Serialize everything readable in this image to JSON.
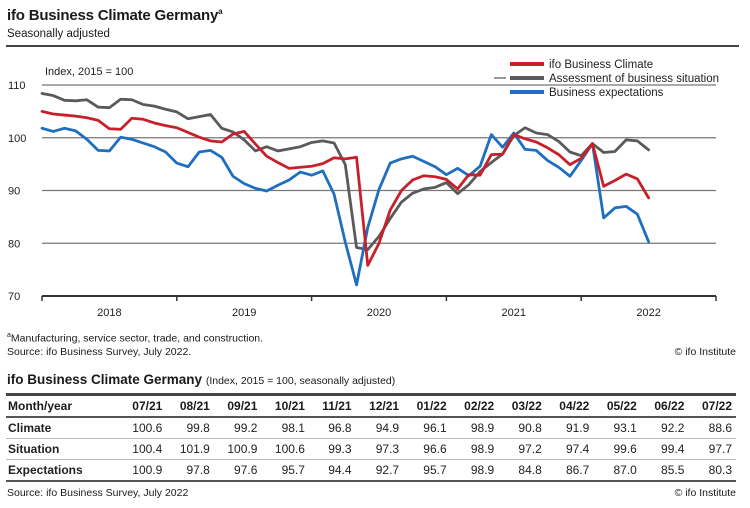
{
  "header": {
    "title": "ifo Business Climate Germany",
    "title_note": "a",
    "subtitle": "Seasonally adjusted"
  },
  "chart_data": {
    "type": "line",
    "title": "ifo Business Climate Germany",
    "subtitle": "Seasonally adjusted",
    "ylabel": "Index, 2015 = 100",
    "xlabel": "",
    "ylim": [
      70,
      110
    ],
    "yticks": [
      70,
      80,
      90,
      100,
      110
    ],
    "grid": true,
    "legend_position": "top-right",
    "x_start": "2018-01",
    "x_range_months": [
      0,
      60
    ],
    "year_labels": [
      "2018",
      "2019",
      "2020",
      "2021",
      "2022"
    ],
    "x": [
      "01/18",
      "02/18",
      "03/18",
      "04/18",
      "05/18",
      "06/18",
      "07/18",
      "08/18",
      "09/18",
      "10/18",
      "11/18",
      "12/18",
      "01/19",
      "02/19",
      "03/19",
      "04/19",
      "05/19",
      "06/19",
      "07/19",
      "08/19",
      "09/19",
      "10/19",
      "11/19",
      "12/19",
      "01/20",
      "02/20",
      "03/20",
      "04/20",
      "05/20",
      "06/20",
      "07/20",
      "08/20",
      "09/20",
      "10/20",
      "11/20",
      "12/20",
      "01/21",
      "02/21",
      "03/21",
      "04/21",
      "05/21",
      "06/21",
      "07/21",
      "08/21",
      "09/21",
      "10/21",
      "11/21",
      "12/21",
      "01/22",
      "02/22",
      "03/22",
      "04/22",
      "05/22",
      "06/22",
      "07/22"
    ],
    "series": [
      {
        "name": "ifo Business Climate",
        "color": "#c8202b",
        "values": [
          105.0,
          104.5,
          104.3,
          104.1,
          103.8,
          103.3,
          101.7,
          101.6,
          103.7,
          103.5,
          102.8,
          102.3,
          101.9,
          101.0,
          100.1,
          99.4,
          99.2,
          100.7,
          101.2,
          98.8,
          96.5,
          95.3,
          94.2,
          94.4,
          94.6,
          95.1,
          96.2,
          96.0,
          96.3,
          75.8,
          80.0,
          86.3,
          90.0,
          92.0,
          92.8,
          92.6,
          92.1,
          90.3,
          93.0,
          92.9,
          96.8,
          96.9,
          100.6,
          99.8,
          99.2,
          98.1,
          96.8,
          94.9,
          96.1,
          98.9,
          90.8,
          91.9,
          93.1,
          92.2,
          88.6
        ]
      },
      {
        "name": "Assessment of business situation",
        "color": "#5a5a5a",
        "values": [
          108.4,
          108.0,
          107.1,
          107.0,
          107.2,
          105.8,
          105.7,
          107.3,
          107.2,
          106.3,
          106.0,
          105.4,
          104.9,
          103.6,
          104.0,
          104.4,
          101.8,
          101.1,
          99.6,
          97.5,
          98.3,
          97.5,
          97.9,
          98.3,
          99.1,
          99.4,
          99.0,
          94.9,
          79.2,
          78.8,
          81.3,
          84.7,
          87.8,
          89.5,
          90.3,
          90.6,
          91.5,
          89.4,
          91.1,
          93.6,
          95.3,
          96.9,
          100.4,
          101.9,
          100.9,
          100.6,
          99.3,
          97.3,
          96.6,
          98.9,
          97.2,
          97.4,
          99.6,
          99.4,
          97.7
        ]
      },
      {
        "name": "Business expectations",
        "color": "#1f6fc0",
        "values": [
          101.8,
          101.2,
          101.8,
          101.3,
          99.7,
          97.6,
          97.5,
          100.1,
          99.7,
          99.0,
          98.3,
          97.3,
          95.2,
          94.5,
          97.3,
          97.6,
          96.3,
          92.7,
          91.3,
          90.4,
          89.9,
          91.0,
          92.0,
          93.5,
          92.9,
          93.7,
          89.3,
          80.2,
          72.1,
          83.0,
          90.2,
          95.2,
          96.0,
          96.5,
          95.5,
          94.5,
          93.0,
          94.2,
          92.8,
          94.6,
          100.6,
          98.2,
          100.9,
          97.8,
          97.6,
          95.7,
          94.4,
          92.7,
          95.7,
          98.9,
          84.8,
          86.7,
          87.0,
          85.5,
          80.3
        ]
      }
    ]
  },
  "footnotes": {
    "note_marker": "a",
    "note_text": "Manufacturing, service sector, trade, and construction.",
    "source_chart": "Source: ifo Business Survey, July 2022.",
    "copyright": "© ifo Institute"
  },
  "table": {
    "title": "ifo Business Climate Germany",
    "title_note": "(Index, 2015 = 100, seasonally adjusted)",
    "columns": [
      "Month/year",
      "07/21",
      "08/21",
      "09/21",
      "10/21",
      "11/21",
      "12/21",
      "01/22",
      "02/22",
      "03/22",
      "04/22",
      "05/22",
      "06/22",
      "07/22"
    ],
    "rows": [
      {
        "label": "Climate",
        "values": [
          "100.6",
          "99.8",
          "99.2",
          "98.1",
          "96.8",
          "94.9",
          "96.1",
          "98.9",
          "90.8",
          "91.9",
          "93.1",
          "92.2",
          "88.6"
        ]
      },
      {
        "label": "Situation",
        "values": [
          "100.4",
          "101.9",
          "100.9",
          "100.6",
          "99.3",
          "97.3",
          "96.6",
          "98.9",
          "97.2",
          "97.4",
          "99.6",
          "99.4",
          "97.7"
        ]
      },
      {
        "label": "Expectations",
        "values": [
          "100.9",
          "97.8",
          "97.6",
          "95.7",
          "94.4",
          "92.7",
          "95.7",
          "98.9",
          "84.8",
          "86.7",
          "87.0",
          "85.5",
          "80.3"
        ]
      }
    ],
    "source": "Source: ifo Business Survey, July 2022",
    "copyright": "© ifo Institute"
  }
}
